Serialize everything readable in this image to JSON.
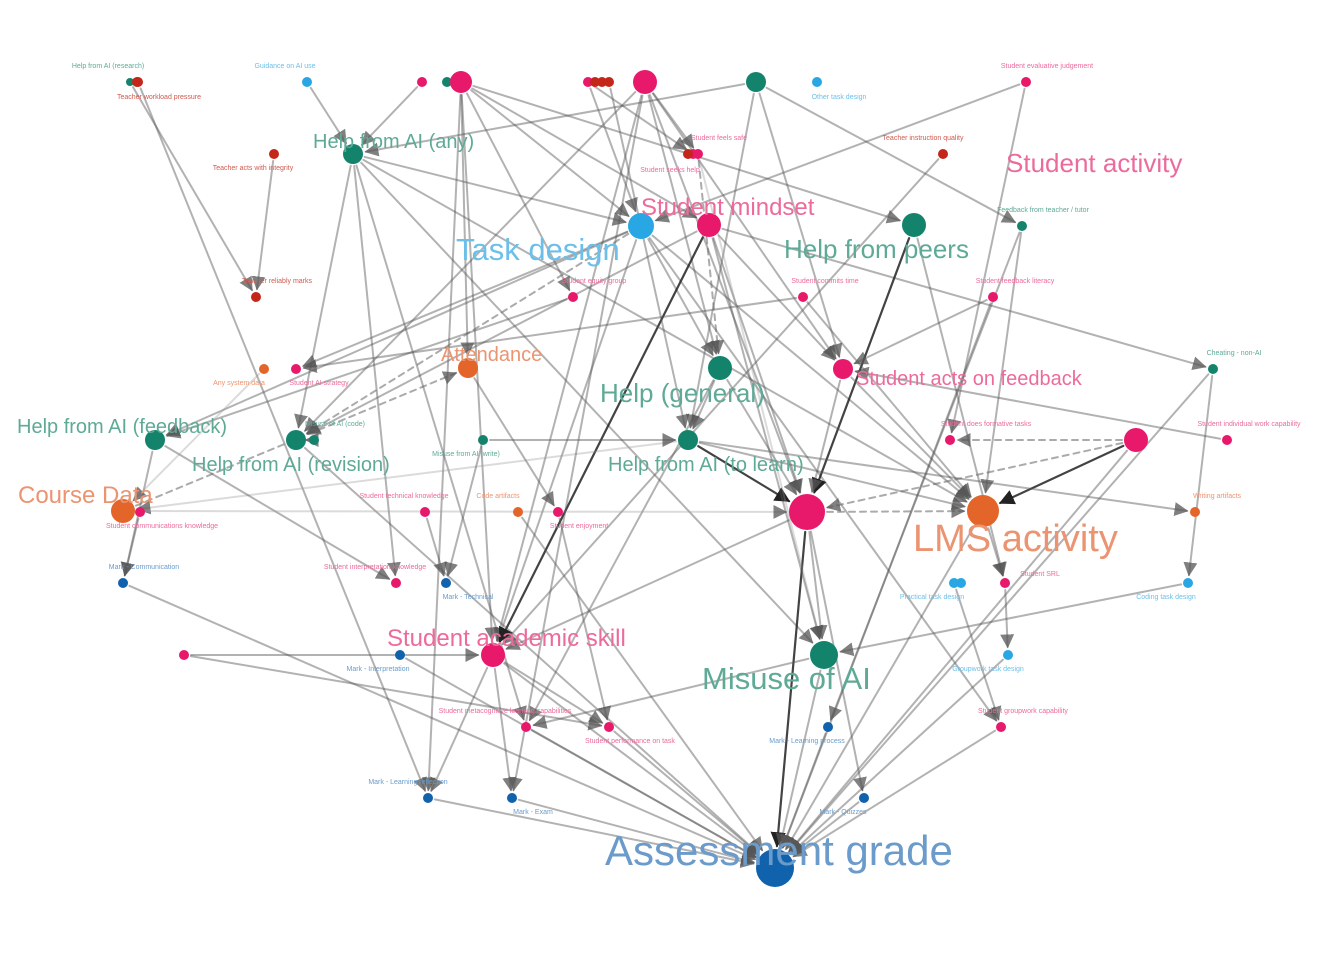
{
  "colors": {
    "teal": "#13836c",
    "pink": "#e8186b",
    "sky": "#29a6e4",
    "orange": "#e4652a",
    "blue": "#1062ad",
    "red": "#c4261a",
    "label_teal": "#5eaa96",
    "label_pink": "#ec6a9c",
    "label_sky": "#6cbfe9",
    "label_orange": "#eb9471",
    "label_blue": "#6a9bcb",
    "label_red": "#cf5a4f",
    "edge": "#555555"
  },
  "nodes": [
    {
      "id": "assessment-grade",
      "label": "Assessment grade",
      "group": "blue",
      "tier": "xl"
    },
    {
      "id": "lms-activity",
      "label": "LMS activity",
      "group": "orange",
      "tier": "lg"
    },
    {
      "id": "course-data",
      "label": "Course Data",
      "group": "orange",
      "tier": "md"
    },
    {
      "id": "attendance",
      "label": "Attendance",
      "group": "orange",
      "tier": "sm"
    },
    {
      "id": "task-design",
      "label": "Task design",
      "group": "sky",
      "tier": "md"
    },
    {
      "id": "student-mindset",
      "label": "Student mindset",
      "group": "pink",
      "tier": "md"
    },
    {
      "id": "student-activity",
      "label": "Student activity",
      "group": "pink",
      "tier": "md"
    },
    {
      "id": "student-acts-on-feedback",
      "label": "Student acts on feedback",
      "group": "pink",
      "tier": "sm"
    },
    {
      "id": "student-academic-skill",
      "label": "Student academic skill",
      "group": "pink",
      "tier": "md"
    },
    {
      "id": "help-from-ai-any",
      "label": "Help from AI (any)",
      "group": "teal",
      "tier": "md"
    },
    {
      "id": "help-from-peers",
      "label": "Help from peers",
      "group": "teal",
      "tier": "md"
    },
    {
      "id": "help-general",
      "label": "Help (general)",
      "group": "teal",
      "tier": "md"
    },
    {
      "id": "help-from-ai-feedback",
      "label": "Help from AI (feedback)",
      "group": "teal",
      "tier": "sm"
    },
    {
      "id": "help-from-ai-revision",
      "label": "Help from AI (revision)",
      "group": "teal",
      "tier": "sm"
    },
    {
      "id": "help-from-ai-to-learn",
      "label": "Help from AI (to learn)",
      "group": "teal",
      "tier": "sm"
    },
    {
      "id": "misuse-of-ai",
      "label": "Misuse of AI",
      "group": "teal",
      "tier": "md"
    },
    {
      "id": "central-hub",
      "label": "",
      "group": "pink",
      "tier": "none"
    },
    {
      "id": "help-from-ai-research",
      "label": "Help from AI (research)",
      "group": "teal",
      "tier": "xs"
    },
    {
      "id": "teacher-workload-pressure",
      "label": "Teacher workload pressure",
      "group": "red",
      "tier": "xs"
    },
    {
      "id": "guidance-on-ai-use",
      "label": "Guidance on AI use",
      "group": "sky",
      "tier": "xs"
    },
    {
      "id": "other-task-design",
      "label": "Other task design",
      "group": "sky",
      "tier": "xs"
    },
    {
      "id": "student-evaluative-judgement",
      "label": "Student evaluative judgement",
      "group": "pink",
      "tier": "xs"
    },
    {
      "id": "student-feels-safe",
      "label": "Student feels safe",
      "group": "pink",
      "tier": "xs"
    },
    {
      "id": "teacher-instruction-quality",
      "label": "Teacher instruction quality",
      "group": "red",
      "tier": "xs"
    },
    {
      "id": "teacher-acts-with-integrity",
      "label": "Teacher acts with integrity",
      "group": "red",
      "tier": "xs"
    },
    {
      "id": "student-seeks-help",
      "label": "Student seeks help",
      "group": "pink",
      "tier": "xs"
    },
    {
      "id": "feedback-from-teacher-tutor",
      "label": "Feedback from teacher / tutor",
      "group": "teal",
      "tier": "xs"
    },
    {
      "id": "teacher-reliably-marks",
      "label": "Teacher reliably marks",
      "group": "red",
      "tier": "xs"
    },
    {
      "id": "student-equity-group",
      "label": "Student equity group",
      "group": "pink",
      "tier": "xs"
    },
    {
      "id": "student-commits-time",
      "label": "Student commits time",
      "group": "pink",
      "tier": "xs"
    },
    {
      "id": "student-feedback-literacy",
      "label": "Student feedback literacy",
      "group": "pink",
      "tier": "xs"
    },
    {
      "id": "cheating-non-ai",
      "label": "Cheating - non-AI",
      "group": "teal",
      "tier": "xs"
    },
    {
      "id": "any-system-data",
      "label": "Any system data",
      "group": "orange",
      "tier": "xs"
    },
    {
      "id": "student-ai-strategy",
      "label": "Student AI strategy",
      "group": "pink",
      "tier": "xs"
    },
    {
      "id": "misuse-of-ai-code",
      "label": "Misuse of AI (code)",
      "group": "teal",
      "tier": "xs"
    },
    {
      "id": "misuse-from-ai-write",
      "label": "Misuse from AI (write)",
      "group": "teal",
      "tier": "xs"
    },
    {
      "id": "student-does-formative-tasks",
      "label": "Student does formative tasks",
      "group": "pink",
      "tier": "xs"
    },
    {
      "id": "student-individual-work-capability",
      "label": "Student individual work capability",
      "group": "pink",
      "tier": "xs"
    },
    {
      "id": "student-technical-knowledge",
      "label": "Student technical knowledge",
      "group": "pink",
      "tier": "xs"
    },
    {
      "id": "code-artifacts",
      "label": "Code artifacts",
      "group": "orange",
      "tier": "xs"
    },
    {
      "id": "writing-artifacts",
      "label": "Writing artifacts",
      "group": "orange",
      "tier": "xs"
    },
    {
      "id": "student-communications-knowledge",
      "label": "Student communications knowledge",
      "group": "pink",
      "tier": "xs"
    },
    {
      "id": "student-enjoyment",
      "label": "Student enjoyment",
      "group": "pink",
      "tier": "xs"
    },
    {
      "id": "mark-communication",
      "label": "Mark - Communication",
      "group": "blue",
      "tier": "xs"
    },
    {
      "id": "student-interpretation-knowledge",
      "label": "Student interpretation knowledge",
      "group": "pink",
      "tier": "xs"
    },
    {
      "id": "student-srl",
      "label": "Student SRL",
      "group": "pink",
      "tier": "xs"
    },
    {
      "id": "mark-technical",
      "label": "Mark - Technical",
      "group": "blue",
      "tier": "xs"
    },
    {
      "id": "practical-task-design",
      "label": "Practical task design",
      "group": "sky",
      "tier": "xs"
    },
    {
      "id": "coding-task-design",
      "label": "Coding task design",
      "group": "sky",
      "tier": "xs"
    },
    {
      "id": "mark-interpretation",
      "label": "Mark - Interpretation",
      "group": "blue",
      "tier": "xs"
    },
    {
      "id": "groupwork-task-design",
      "label": "Groupwork task design",
      "group": "sky",
      "tier": "xs"
    },
    {
      "id": "student-metacognitive-learning-capabilities",
      "label": "Student metacognitive learning capabilities",
      "group": "pink",
      "tier": "xs"
    },
    {
      "id": "student-groupwork-capability",
      "label": "Student groupwork capability",
      "group": "pink",
      "tier": "xs"
    },
    {
      "id": "student-performance-on-task",
      "label": "Student performance on task",
      "group": "pink",
      "tier": "xs"
    },
    {
      "id": "mark-learning-process",
      "label": "Mark - Learning process",
      "group": "blue",
      "tier": "xs"
    },
    {
      "id": "mark-learning-reflection",
      "label": "Mark - Learning reflection",
      "group": "blue",
      "tier": "xs"
    },
    {
      "id": "mark-exam",
      "label": "Mark - Exam",
      "group": "blue",
      "tier": "xs"
    },
    {
      "id": "mark-quizzes",
      "label": "Mark - Quizzes",
      "group": "blue",
      "tier": "xs"
    },
    {
      "id": "top-cluster-a-pink",
      "label": "",
      "group": "pink",
      "tier": "none"
    },
    {
      "id": "top-cluster-a-teal",
      "label": "",
      "group": "teal",
      "tier": "none"
    },
    {
      "id": "top-cluster-a-big",
      "label": "",
      "group": "pink",
      "tier": "none"
    },
    {
      "id": "top-cluster-b-pink",
      "label": "",
      "group": "pink",
      "tier": "none"
    },
    {
      "id": "top-cluster-b-red1",
      "label": "",
      "group": "red",
      "tier": "none"
    },
    {
      "id": "top-cluster-b-red2",
      "label": "",
      "group": "red",
      "tier": "none"
    },
    {
      "id": "top-cluster-b-red3",
      "label": "",
      "group": "red",
      "tier": "none"
    },
    {
      "id": "top-cluster-c-big",
      "label": "",
      "group": "pink",
      "tier": "none"
    },
    {
      "id": "top-cluster-d-teal",
      "label": "",
      "group": "teal",
      "tier": "none"
    },
    {
      "id": "research-red",
      "label": "",
      "group": "red",
      "tier": "none"
    },
    {
      "id": "safe-red",
      "label": "",
      "group": "red",
      "tier": "none"
    },
    {
      "id": "misuse-code-teal",
      "label": "",
      "group": "teal",
      "tier": "none"
    },
    {
      "id": "feedback-pink-dot",
      "label": "",
      "group": "pink",
      "tier": "none"
    },
    {
      "id": "practical-sky2",
      "label": "",
      "group": "sky",
      "tier": "none"
    },
    {
      "id": "left-pink-dot",
      "label": "",
      "group": "pink",
      "tier": "none"
    }
  ]
}
